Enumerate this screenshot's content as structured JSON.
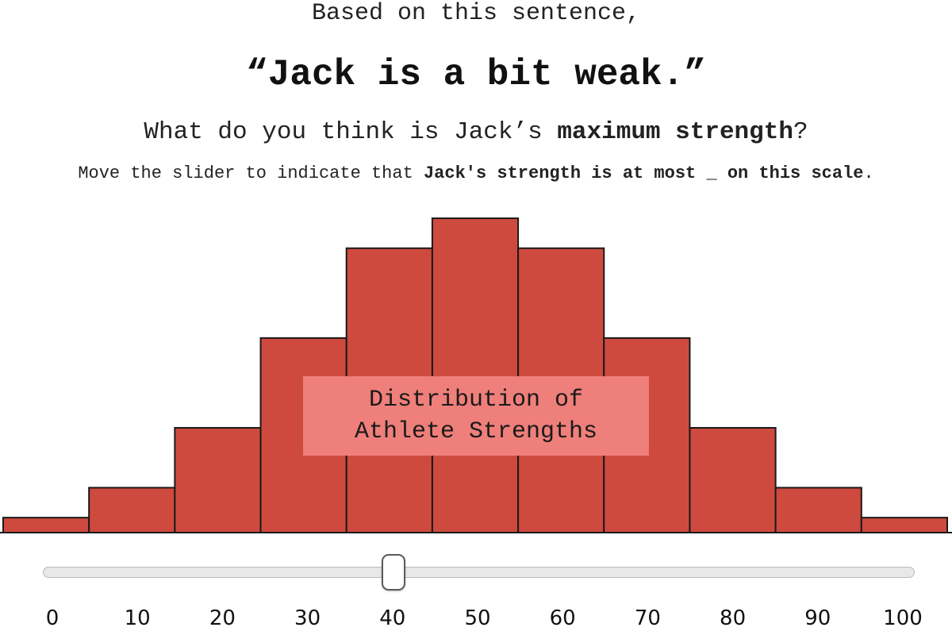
{
  "prompt": {
    "intro": "Based on this sentence,",
    "sentence": "“Jack is a bit weak.”",
    "question_before": "What do you think is Jack’s ",
    "question_bold": "maximum strength",
    "question_after": "?",
    "instruction_before": "Move the slider to indicate that ",
    "instruction_bold": "Jack's strength is at most _ on this scale",
    "instruction_after": "."
  },
  "chart_data": {
    "type": "bar",
    "title": "",
    "label_box_lines": [
      "Distribution of",
      "Athlete Strengths"
    ],
    "categories": [
      0,
      10,
      20,
      30,
      40,
      50,
      60,
      70,
      80,
      90,
      100
    ],
    "values": [
      1,
      3,
      7,
      13,
      19,
      21,
      19,
      13,
      7,
      3,
      1
    ],
    "bar_color": "#cf4a3e",
    "label_box_color": "#ef7f7a"
  },
  "slider": {
    "min": 0,
    "max": 100,
    "value": 40,
    "ticks": [
      "0",
      "10",
      "20",
      "30",
      "40",
      "50",
      "60",
      "70",
      "80",
      "90",
      "100"
    ]
  }
}
